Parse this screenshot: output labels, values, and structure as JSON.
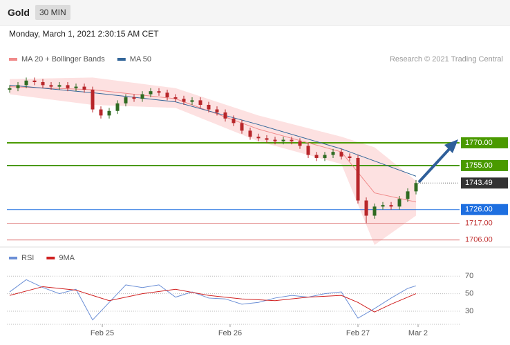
{
  "header": {
    "title": "Gold",
    "interval": "30 MIN",
    "datetime": "Monday, March 1, 2021 2:30:15 AM CET"
  },
  "chart_data": [
    {
      "type": "candlestick",
      "credit": "Research © 2021 Trading Central",
      "x": [
        0,
        1,
        2,
        3,
        4,
        5,
        6,
        7,
        8,
        9,
        10,
        11,
        12,
        13,
        14,
        15,
        16,
        17,
        18,
        19,
        20,
        21,
        22,
        23,
        24,
        25,
        26,
        27,
        28,
        29,
        30,
        31,
        32,
        33,
        34,
        35,
        36,
        37,
        38,
        39,
        40,
        41,
        42,
        43,
        44,
        45,
        46,
        47,
        48,
        49
      ],
      "open": [
        1805,
        1806,
        1808,
        1811,
        1810,
        1808,
        1807,
        1808,
        1806,
        1807,
        1805,
        1792,
        1788,
        1791,
        1796,
        1800,
        1799,
        1802,
        1804,
        1803,
        1800,
        1799,
        1797,
        1798,
        1795,
        1792,
        1790,
        1786,
        1783,
        1778,
        1774,
        1773,
        1772,
        1771,
        1772,
        1771,
        1768,
        1762,
        1760,
        1762,
        1764,
        1761,
        1760,
        1732,
        1722,
        1728,
        1729,
        1728,
        1733,
        1738
      ],
      "high": [
        1808,
        1810,
        1813,
        1813,
        1812,
        1810,
        1810,
        1810,
        1809,
        1809,
        1807,
        1794,
        1793,
        1798,
        1802,
        1802,
        1804,
        1806,
        1806,
        1805,
        1802,
        1801,
        1800,
        1800,
        1797,
        1794,
        1792,
        1788,
        1785,
        1780,
        1776,
        1775,
        1774,
        1774,
        1774,
        1773,
        1770,
        1764,
        1764,
        1766,
        1766,
        1763,
        1762,
        1734,
        1730,
        1731,
        1731,
        1735,
        1740,
        1745.5
      ],
      "low": [
        1803,
        1804,
        1806,
        1808,
        1806,
        1805,
        1805,
        1804,
        1804,
        1803,
        1790,
        1786,
        1786,
        1789,
        1794,
        1797,
        1797,
        1800,
        1801,
        1798,
        1797,
        1795,
        1795,
        1793,
        1790,
        1788,
        1784,
        1781,
        1776,
        1772,
        1771,
        1770,
        1769,
        1769,
        1769,
        1766,
        1760,
        1758,
        1758,
        1760,
        1759,
        1758,
        1730,
        1717,
        1720,
        1726,
        1726,
        1726,
        1731,
        1736
      ],
      "close": [
        1806,
        1808,
        1811,
        1810,
        1808,
        1807,
        1808,
        1806,
        1807,
        1805,
        1792,
        1788,
        1791,
        1796,
        1800,
        1799,
        1802,
        1804,
        1803,
        1800,
        1799,
        1797,
        1798,
        1795,
        1792,
        1790,
        1786,
        1783,
        1778,
        1774,
        1773,
        1772,
        1771,
        1772,
        1771,
        1768,
        1762,
        1760,
        1762,
        1764,
        1761,
        1760,
        1732,
        1722,
        1728,
        1729,
        1728,
        1733,
        1738,
        1743.5
      ],
      "up_color": "#2f6b22",
      "down_color": "#b8262a",
      "xlim": [
        -0.333,
        54.25
      ],
      "ylim": [
        1702.7,
        1820.9
      ],
      "series": [
        {
          "name": "MA 20 + Bollinger Bands",
          "color": "#f08a8a",
          "band_color": "#fde1e1",
          "x": [
            0,
            10,
            20,
            30,
            40,
            44,
            49
          ],
          "values": [
            1807,
            1805,
            1799,
            1779,
            1764,
            1737,
            1731
          ],
          "upper": [
            1812,
            1813,
            1806,
            1788,
            1774,
            1767,
            1745
          ],
          "lower": [
            1802,
            1795,
            1793,
            1771,
            1756,
            1702.7,
            1722
          ]
        },
        {
          "name": "MA 50",
          "color": "#336699",
          "x": [
            0,
            10,
            20,
            30,
            40,
            49
          ],
          "values": [
            1808,
            1803,
            1797,
            1782,
            1766,
            1748
          ]
        }
      ],
      "levels": [
        {
          "value": 1770,
          "label": "1770.00",
          "color": "#4a9a00",
          "style": "box"
        },
        {
          "value": 1755,
          "label": "1755.00",
          "color": "#4a9a00",
          "style": "box"
        },
        {
          "value": 1743.49,
          "label": "1743.49",
          "color": "#333333",
          "style": "current"
        },
        {
          "value": 1726,
          "label": "1726.00",
          "color": "#1e6fe0",
          "style": "box"
        },
        {
          "value": 1717,
          "label": "1717.00",
          "color": "#e08080",
          "style": "text"
        },
        {
          "value": 1706,
          "label": "1706.00",
          "color": "#e08080",
          "style": "text"
        }
      ]
    },
    {
      "type": "line",
      "xlim": [
        -0.333,
        54.25
      ],
      "ylim": [
        15,
        82
      ],
      "yticks": [
        30,
        50,
        70
      ],
      "xticks": [
        {
          "value": 11.17,
          "label": "Feb 25"
        },
        {
          "value": 26.58,
          "label": "Feb 26"
        },
        {
          "value": 42,
          "label": "Feb 27"
        },
        {
          "value": 49.25,
          "label": "Mar 2"
        }
      ],
      "series": [
        {
          "name": "RSI",
          "color": "#6b8fd6",
          "x": [
            0,
            2,
            4,
            6,
            8,
            10,
            12,
            14,
            16,
            18,
            20,
            22,
            24,
            26,
            28,
            30,
            32,
            34,
            36,
            38,
            40,
            42,
            44,
            46,
            48,
            49
          ],
          "values": [
            52,
            66,
            57,
            50,
            55,
            20,
            40,
            60,
            57,
            60,
            46,
            52,
            45,
            44,
            38,
            40,
            45,
            48,
            46,
            50,
            52,
            22,
            33,
            45,
            56,
            59
          ]
        },
        {
          "name": "9MA",
          "color": "#d02020",
          "x": [
            0,
            4,
            8,
            12,
            16,
            20,
            24,
            28,
            32,
            36,
            40,
            42,
            44,
            46,
            49
          ],
          "values": [
            48,
            58,
            54,
            42,
            50,
            55,
            48,
            44,
            42,
            46,
            48,
            40,
            29,
            38,
            50
          ]
        }
      ]
    }
  ]
}
